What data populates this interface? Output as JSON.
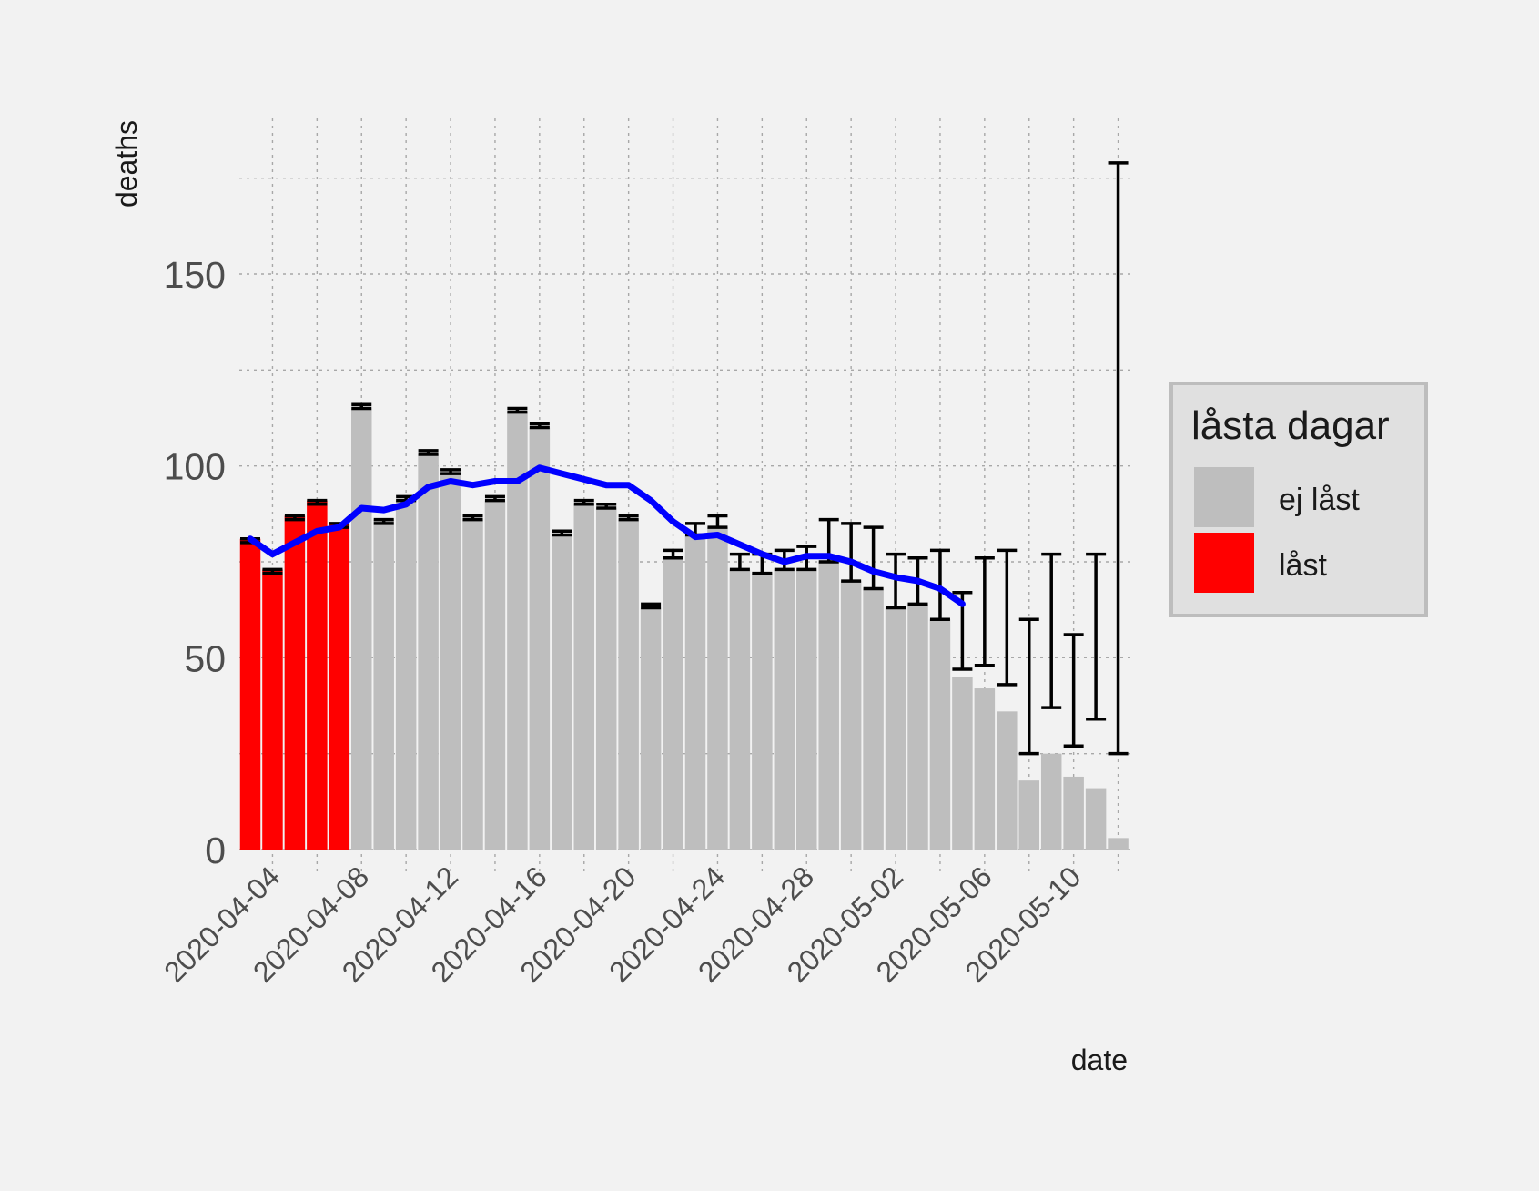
{
  "chart_data": {
    "type": "bar",
    "xlabel": "date",
    "ylabel": "deaths",
    "ylim": [
      0,
      190
    ],
    "y_ticks": [
      0,
      50,
      100,
      150
    ],
    "x_tick_labels": [
      "2020-04-04",
      "2020-04-08",
      "2020-04-12",
      "2020-04-16",
      "2020-04-20",
      "2020-04-24",
      "2020-04-28",
      "2020-05-02",
      "2020-05-06",
      "2020-05-10"
    ],
    "grid": true,
    "legend_position": "right",
    "legend": {
      "title": "låsta dagar",
      "items": [
        {
          "label": "ej låst",
          "color": "#bebebe"
        },
        {
          "label": "låst",
          "color": "#ff0000"
        }
      ]
    },
    "colors": {
      "locked": "#ff0000",
      "unlocked": "#bebebe",
      "line": "#0000ff",
      "errorbar": "#000000"
    },
    "bars": [
      {
        "date": "2020-04-03",
        "value": 81,
        "locked": true,
        "err": [
          80,
          81
        ]
      },
      {
        "date": "2020-04-04",
        "value": 73,
        "locked": true,
        "err": [
          72,
          73
        ]
      },
      {
        "date": "2020-04-05",
        "value": 87,
        "locked": true,
        "err": [
          86,
          87
        ]
      },
      {
        "date": "2020-04-06",
        "value": 91,
        "locked": true,
        "err": [
          90,
          91
        ]
      },
      {
        "date": "2020-04-07",
        "value": 85,
        "locked": true,
        "err": [
          84,
          85
        ]
      },
      {
        "date": "2020-04-08",
        "value": 115,
        "locked": false,
        "err": [
          115,
          116
        ]
      },
      {
        "date": "2020-04-09",
        "value": 86,
        "locked": false,
        "err": [
          85,
          86
        ]
      },
      {
        "date": "2020-04-10",
        "value": 91,
        "locked": false,
        "err": [
          91,
          92
        ]
      },
      {
        "date": "2020-04-11",
        "value": 103,
        "locked": false,
        "err": [
          103,
          104
        ]
      },
      {
        "date": "2020-04-12",
        "value": 98,
        "locked": false,
        "err": [
          98,
          99
        ]
      },
      {
        "date": "2020-04-13",
        "value": 86,
        "locked": false,
        "err": [
          86,
          87
        ]
      },
      {
        "date": "2020-04-14",
        "value": 91,
        "locked": false,
        "err": [
          91,
          92
        ]
      },
      {
        "date": "2020-04-15",
        "value": 114,
        "locked": false,
        "err": [
          114,
          115
        ]
      },
      {
        "date": "2020-04-16",
        "value": 110,
        "locked": false,
        "err": [
          110,
          111
        ]
      },
      {
        "date": "2020-04-17",
        "value": 82,
        "locked": false,
        "err": [
          82,
          83
        ]
      },
      {
        "date": "2020-04-18",
        "value": 90,
        "locked": false,
        "err": [
          90,
          91
        ]
      },
      {
        "date": "2020-04-19",
        "value": 89,
        "locked": false,
        "err": [
          89,
          90
        ]
      },
      {
        "date": "2020-04-20",
        "value": 86,
        "locked": false,
        "err": [
          86,
          87
        ]
      },
      {
        "date": "2020-04-21",
        "value": 63,
        "locked": false,
        "err": [
          63,
          64
        ]
      },
      {
        "date": "2020-04-22",
        "value": 76,
        "locked": false,
        "err": [
          76,
          78
        ]
      },
      {
        "date": "2020-04-23",
        "value": 82,
        "locked": false,
        "err": [
          82,
          85
        ]
      },
      {
        "date": "2020-04-24",
        "value": 84,
        "locked": false,
        "err": [
          84,
          87
        ]
      },
      {
        "date": "2020-04-25",
        "value": 73,
        "locked": false,
        "err": [
          73,
          77
        ]
      },
      {
        "date": "2020-04-26",
        "value": 72,
        "locked": false,
        "err": [
          72,
          77
        ]
      },
      {
        "date": "2020-04-27",
        "value": 73,
        "locked": false,
        "err": [
          73,
          78
        ]
      },
      {
        "date": "2020-04-28",
        "value": 73,
        "locked": false,
        "err": [
          73,
          79
        ]
      },
      {
        "date": "2020-04-29",
        "value": 75,
        "locked": false,
        "err": [
          75,
          86
        ]
      },
      {
        "date": "2020-04-30",
        "value": 70,
        "locked": false,
        "err": [
          70,
          85
        ]
      },
      {
        "date": "2020-05-01",
        "value": 68,
        "locked": false,
        "err": [
          68,
          84
        ]
      },
      {
        "date": "2020-05-02",
        "value": 63,
        "locked": false,
        "err": [
          63,
          77
        ]
      },
      {
        "date": "2020-05-03",
        "value": 64,
        "locked": false,
        "err": [
          64,
          76
        ]
      },
      {
        "date": "2020-05-04",
        "value": 60,
        "locked": false,
        "err": [
          60,
          78
        ]
      },
      {
        "date": "2020-05-05",
        "value": 45,
        "locked": false,
        "err": [
          47,
          67
        ]
      },
      {
        "date": "2020-05-06",
        "value": 42,
        "locked": false,
        "err": [
          48,
          76
        ]
      },
      {
        "date": "2020-05-07",
        "value": 36,
        "locked": false,
        "err": [
          43,
          78
        ]
      },
      {
        "date": "2020-05-08",
        "value": 18,
        "locked": false,
        "err": [
          25,
          60
        ]
      },
      {
        "date": "2020-05-09",
        "value": 25,
        "locked": false,
        "err": [
          37,
          77
        ]
      },
      {
        "date": "2020-05-10",
        "value": 19,
        "locked": false,
        "err": [
          27,
          56
        ]
      },
      {
        "date": "2020-05-11",
        "value": 16,
        "locked": false,
        "err": [
          34,
          77
        ]
      },
      {
        "date": "2020-05-12",
        "value": 3,
        "locked": false,
        "err": [
          25,
          179
        ]
      }
    ],
    "line": {
      "points": [
        {
          "date": "2020-04-03",
          "value": 81
        },
        {
          "date": "2020-04-04",
          "value": 77
        },
        {
          "date": "2020-04-05",
          "value": 80
        },
        {
          "date": "2020-04-06",
          "value": 83
        },
        {
          "date": "2020-04-07",
          "value": 84
        },
        {
          "date": "2020-04-08",
          "value": 89
        },
        {
          "date": "2020-04-09",
          "value": 88.5
        },
        {
          "date": "2020-04-10",
          "value": 90
        },
        {
          "date": "2020-04-11",
          "value": 94.5
        },
        {
          "date": "2020-04-12",
          "value": 96
        },
        {
          "date": "2020-04-13",
          "value": 95
        },
        {
          "date": "2020-04-14",
          "value": 96
        },
        {
          "date": "2020-04-15",
          "value": 96
        },
        {
          "date": "2020-04-16",
          "value": 99.5
        },
        {
          "date": "2020-04-17",
          "value": 98
        },
        {
          "date": "2020-04-18",
          "value": 96.5
        },
        {
          "date": "2020-04-19",
          "value": 95
        },
        {
          "date": "2020-04-20",
          "value": 95
        },
        {
          "date": "2020-04-21",
          "value": 91
        },
        {
          "date": "2020-04-22",
          "value": 85.5
        },
        {
          "date": "2020-04-23",
          "value": 81.5
        },
        {
          "date": "2020-04-24",
          "value": 82
        },
        {
          "date": "2020-04-25",
          "value": 79.5
        },
        {
          "date": "2020-04-26",
          "value": 77
        },
        {
          "date": "2020-04-27",
          "value": 75
        },
        {
          "date": "2020-04-28",
          "value": 76.5
        },
        {
          "date": "2020-04-29",
          "value": 76.5
        },
        {
          "date": "2020-04-30",
          "value": 75
        },
        {
          "date": "2020-05-01",
          "value": 72.5
        },
        {
          "date": "2020-05-02",
          "value": 71
        },
        {
          "date": "2020-05-03",
          "value": 70
        },
        {
          "date": "2020-05-04",
          "value": 68
        },
        {
          "date": "2020-05-05",
          "value": 64
        }
      ]
    }
  }
}
